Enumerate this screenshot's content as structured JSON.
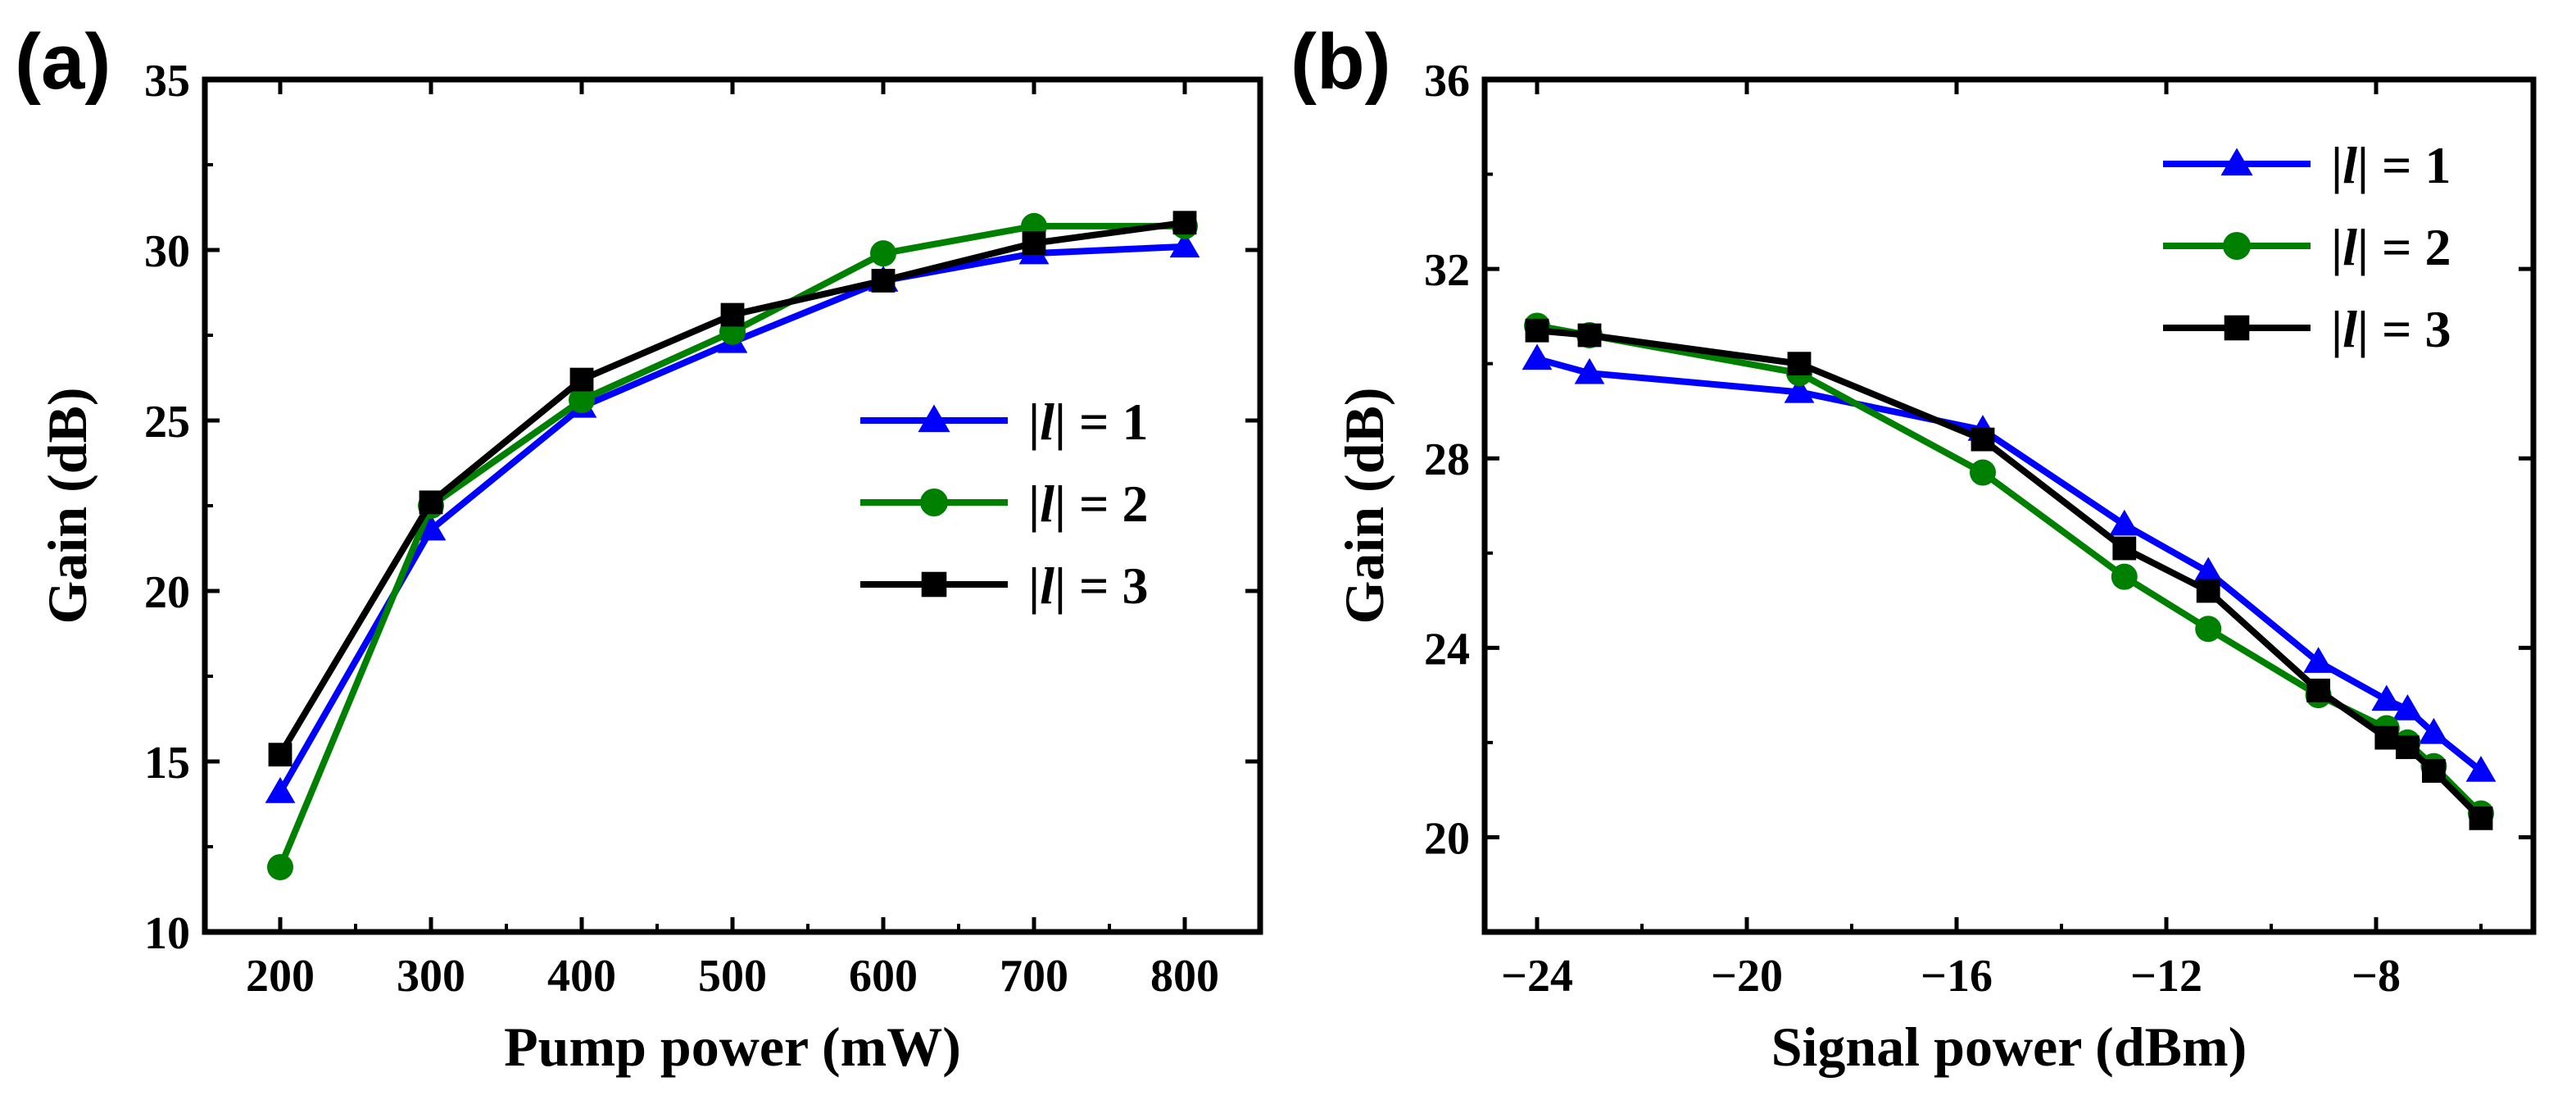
{
  "chart_data": [
    {
      "type": "line",
      "panel_label": "(a)",
      "xlabel": "Pump power (mW)",
      "ylabel": "Gain (dB)",
      "xlim": [
        150,
        850
      ],
      "ylim": [
        10,
        35
      ],
      "xticks": [
        200,
        300,
        400,
        500,
        600,
        700,
        800
      ],
      "yticks": [
        10,
        15,
        20,
        25,
        30,
        35
      ],
      "xtick_labels": [
        "200",
        "300",
        "400",
        "500",
        "600",
        "700",
        "800"
      ],
      "ytick_labels": [
        "10",
        "15",
        "20",
        "25",
        "30",
        "35"
      ],
      "legend_position": "center-right",
      "series": [
        {
          "name": "|l| = 1",
          "legend_prefix": "|",
          "legend_italic": "l",
          "legend_suffix": "| = 1",
          "color": "#0000ff",
          "marker": "triangle",
          "x": [
            200,
            300,
            400,
            500,
            600,
            700,
            800
          ],
          "y": [
            14.1,
            21.8,
            25.4,
            27.3,
            29.1,
            29.9,
            30.1
          ]
        },
        {
          "name": "|l| = 2",
          "legend_prefix": "|",
          "legend_italic": "l",
          "legend_suffix": "| = 2",
          "color": "#008000",
          "marker": "circle",
          "x": [
            200,
            300,
            400,
            500,
            600,
            700,
            800
          ],
          "y": [
            11.9,
            22.5,
            25.6,
            27.6,
            29.9,
            30.7,
            30.7
          ]
        },
        {
          "name": "|l| = 3",
          "legend_prefix": "|",
          "legend_italic": "l",
          "legend_suffix": "| = 3",
          "color": "#000000",
          "marker": "square",
          "x": [
            200,
            300,
            400,
            500,
            600,
            700,
            800
          ],
          "y": [
            15.2,
            22.6,
            26.2,
            28.1,
            29.1,
            30.2,
            30.8
          ]
        }
      ]
    },
    {
      "type": "line",
      "panel_label": "(b)",
      "xlabel": "Signal power (dBm)",
      "ylabel": "Gain (dB)",
      "xlim": [
        -25,
        -5
      ],
      "ylim": [
        18,
        36
      ],
      "xticks": [
        -24,
        -20,
        -16,
        -12,
        -8
      ],
      "yticks": [
        20,
        24,
        28,
        32,
        36
      ],
      "xtick_labels": [
        "−24",
        "−20",
        "−16",
        "−12",
        "−8"
      ],
      "ytick_labels": [
        "20",
        "24",
        "28",
        "32",
        "36"
      ],
      "legend_position": "top-right",
      "series": [
        {
          "name": "|l| = 1",
          "legend_prefix": "|",
          "legend_italic": "l",
          "legend_suffix": "| = 1",
          "color": "#0000ff",
          "marker": "triangle",
          "x": [
            -24,
            -23,
            -19,
            -15.5,
            -12.8,
            -11.2,
            -9.1,
            -7.8,
            -7.4,
            -6.9,
            -6
          ],
          "y": [
            30.1,
            29.8,
            29.4,
            28.6,
            26.6,
            25.6,
            23.7,
            22.9,
            22.7,
            22.2,
            21.4
          ]
        },
        {
          "name": "|l| = 2",
          "legend_prefix": "|",
          "legend_italic": "l",
          "legend_suffix": "| = 2",
          "color": "#008000",
          "marker": "circle",
          "x": [
            -24,
            -23,
            -19,
            -15.5,
            -12.8,
            -11.2,
            -9.1,
            -7.8,
            -7.4,
            -6.9,
            -6
          ],
          "y": [
            30.8,
            30.6,
            29.8,
            27.7,
            25.5,
            24.4,
            23,
            22.3,
            22,
            21.5,
            20.5
          ]
        },
        {
          "name": "|l| = 3",
          "legend_prefix": "|",
          "legend_italic": "l",
          "legend_suffix": "| = 3",
          "color": "#000000",
          "marker": "square",
          "x": [
            -24,
            -23,
            -19,
            -15.5,
            -12.8,
            -11.2,
            -9.1,
            -7.8,
            -7.4,
            -6.9,
            -6
          ],
          "y": [
            30.7,
            30.6,
            30,
            28.4,
            26.1,
            25.2,
            23.1,
            22.1,
            21.9,
            21.4,
            20.4
          ]
        }
      ]
    }
  ]
}
